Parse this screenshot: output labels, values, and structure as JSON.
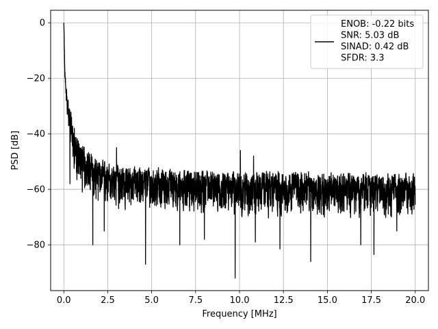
{
  "chart_data": {
    "type": "line",
    "title": "",
    "xlabel": "Frequency [MHz]",
    "ylabel": "PSD [dB]",
    "xlim": [
      -0.75,
      20.75
    ],
    "ylim": [
      -96.5,
      4.5
    ],
    "xticks": [
      0.0,
      2.5,
      5.0,
      7.5,
      10.0,
      12.5,
      15.0,
      17.5,
      20.0
    ],
    "xtick_labels": [
      "0.0",
      "2.5",
      "5.0",
      "7.5",
      "10.0",
      "12.5",
      "15.0",
      "17.5",
      "20.0"
    ],
    "yticks": [
      0,
      -20,
      -40,
      -60,
      -80
    ],
    "ytick_labels": [
      "0",
      "−20",
      "−40",
      "−60",
      "−80"
    ],
    "grid": true,
    "legend_position": "top-right",
    "legend": {
      "lines": [
        "ENOB: -0.22 bits",
        "SNR: 5.03 dB",
        "SINAD: 0.42 dB",
        "SFDR: 3.3"
      ]
    },
    "series": [
      {
        "color": "#000000",
        "x": [
          0,
          0.05,
          0.1,
          0.15,
          0.2,
          0.3,
          0.4,
          0.5,
          0.7,
          1.0,
          1.5,
          2.0,
          2.5,
          3.0,
          4.0,
          5.0,
          6.0,
          8.0,
          10.0,
          12.5,
          15.0,
          17.5,
          20.0
        ],
        "y": [
          0,
          -18,
          -23,
          -27,
          -30,
          -34,
          -38,
          -42,
          -47,
          -50,
          -53,
          -55,
          -56,
          -56.5,
          -57,
          -57.5,
          -58,
          -58.5,
          -59,
          -59,
          -59.5,
          -59.5,
          -59.5
        ],
        "spread_upper": [
          0,
          3,
          4,
          5,
          5,
          6,
          7,
          7,
          8,
          8,
          7.5,
          7,
          6.5,
          6.5,
          6.5,
          6.5,
          6.5,
          6.5,
          6.5,
          6.5,
          6.5,
          6.5,
          6.5
        ],
        "spread_lower": [
          0,
          3,
          4,
          5,
          6,
          8,
          9,
          10,
          11,
          12,
          13,
          13,
          13,
          13,
          13,
          13,
          13,
          13,
          13,
          13,
          13,
          13,
          13
        ],
        "dips": [
          [
            0.35,
            -58
          ],
          [
            1.05,
            -61
          ],
          [
            1.65,
            -80
          ],
          [
            2.3,
            -75
          ],
          [
            4.65,
            -87
          ],
          [
            6.6,
            -80
          ],
          [
            8.0,
            -78
          ],
          [
            9.75,
            -92
          ],
          [
            10.9,
            -79
          ],
          [
            12.3,
            -81.5
          ],
          [
            14.05,
            -86
          ],
          [
            16.9,
            -80
          ],
          [
            17.65,
            -83.5
          ],
          [
            18.95,
            -75
          ]
        ],
        "peaks": [
          [
            0.6,
            -38
          ],
          [
            3.0,
            -45
          ],
          [
            10.05,
            -46
          ],
          [
            10.8,
            -48
          ]
        ]
      }
    ]
  }
}
